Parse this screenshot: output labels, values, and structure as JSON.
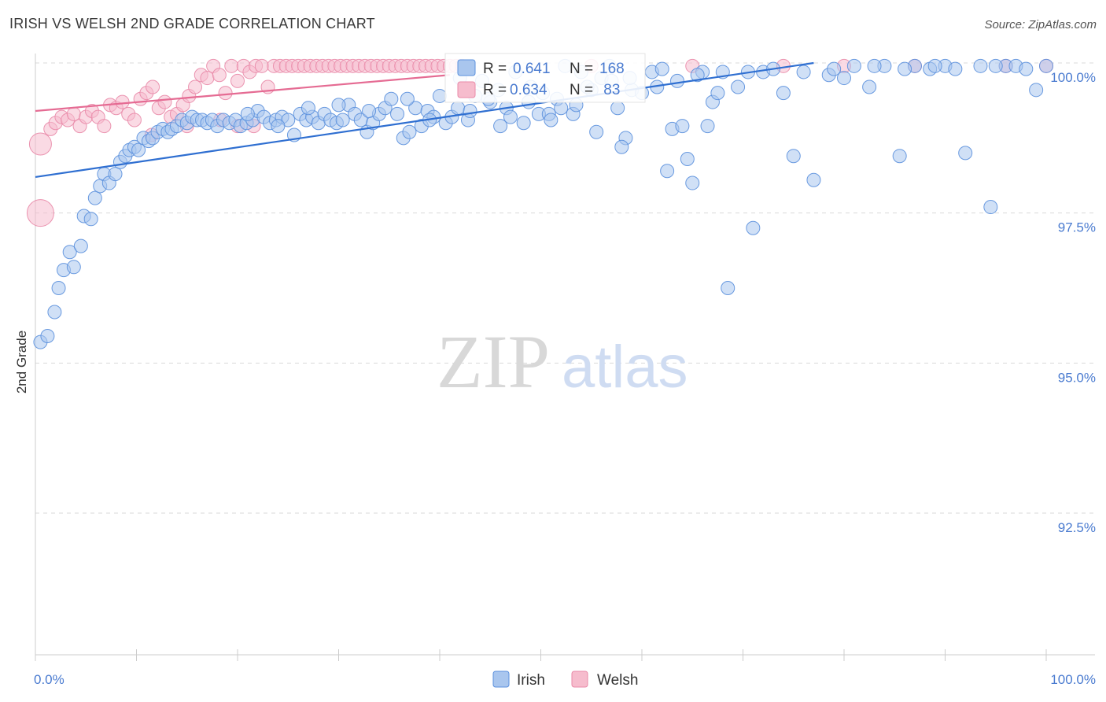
{
  "title": "IRISH VS WELSH 2ND GRADE CORRELATION CHART",
  "source": "Source: ZipAtlas.com",
  "colors": {
    "irish_fill": "#a9c6ee",
    "irish_stroke": "#5b90dd",
    "irish_line": "#2f6fd1",
    "welsh_fill": "#f6bccd",
    "welsh_stroke": "#e98aa8",
    "welsh_line": "#e56b93",
    "tick_label": "#4a7bd0",
    "grid": "#d9d9d9"
  },
  "legend": {
    "irish": {
      "r_label": "R = ",
      "r_value": "0.641",
      "n_label": "N = ",
      "n_value": "168"
    },
    "welsh": {
      "r_label": "R = ",
      "r_value": "0.634",
      "n_label": "N = ",
      "n_value": " 83"
    }
  },
  "watermark": {
    "zip": "ZIP",
    "atlas": "atlas"
  },
  "chart_data": {
    "type": "scatter",
    "title": "IRISH VS WELSH 2ND GRADE CORRELATION CHART",
    "xlabel": "",
    "ylabel": "2nd Grade",
    "xlim": [
      0,
      100
    ],
    "ylim": [
      90.5,
      100.4
    ],
    "x_tick_labels": [
      "0.0%",
      "100.0%"
    ],
    "y_ticks": [
      92.5,
      95.0,
      97.5,
      100.0
    ],
    "y_tick_labels": [
      "92.5%",
      "95.0%",
      "97.5%",
      "100.0%"
    ],
    "legend_labels": [
      "Irish",
      "Welsh"
    ],
    "series": [
      {
        "name": "Irish",
        "trend": {
          "x": [
            0,
            77
          ],
          "y": [
            98.1,
            100.0
          ]
        },
        "points": [
          [
            0.5,
            95.35
          ],
          [
            1.2,
            95.45
          ],
          [
            1.9,
            95.85
          ],
          [
            2.3,
            96.25
          ],
          [
            2.8,
            96.55
          ],
          [
            3.4,
            96.85
          ],
          [
            3.8,
            96.6
          ],
          [
            4.5,
            96.95
          ],
          [
            4.8,
            97.45
          ],
          [
            5.5,
            97.4
          ],
          [
            5.9,
            97.75
          ],
          [
            6.4,
            97.95
          ],
          [
            6.8,
            98.15
          ],
          [
            7.3,
            98.0
          ],
          [
            7.9,
            98.15
          ],
          [
            8.4,
            98.35
          ],
          [
            8.9,
            98.45
          ],
          [
            9.3,
            98.55
          ],
          [
            9.8,
            98.6
          ],
          [
            10.2,
            98.55
          ],
          [
            10.7,
            98.75
          ],
          [
            11.2,
            98.7
          ],
          [
            11.6,
            98.75
          ],
          [
            12.1,
            98.85
          ],
          [
            12.6,
            98.9
          ],
          [
            13.1,
            98.85
          ],
          [
            13.5,
            98.9
          ],
          [
            14.0,
            98.95
          ],
          [
            14.5,
            99.05
          ],
          [
            15.0,
            99.0
          ],
          [
            15.5,
            99.1
          ],
          [
            16.0,
            99.05
          ],
          [
            16.5,
            99.05
          ],
          [
            17.0,
            99.0
          ],
          [
            17.5,
            99.05
          ],
          [
            18.0,
            98.95
          ],
          [
            18.6,
            99.05
          ],
          [
            19.2,
            99.0
          ],
          [
            19.8,
            99.05
          ],
          [
            20.3,
            98.95
          ],
          [
            20.9,
            99.0
          ],
          [
            21.5,
            99.05
          ],
          [
            22.0,
            99.2
          ],
          [
            22.6,
            99.1
          ],
          [
            23.2,
            99.0
          ],
          [
            23.8,
            99.05
          ],
          [
            24.4,
            99.1
          ],
          [
            25.0,
            99.05
          ],
          [
            25.6,
            98.8
          ],
          [
            26.2,
            99.15
          ],
          [
            26.8,
            99.05
          ],
          [
            27.4,
            99.1
          ],
          [
            28.0,
            99.0
          ],
          [
            28.6,
            99.15
          ],
          [
            29.2,
            99.05
          ],
          [
            29.8,
            99.0
          ],
          [
            30.4,
            99.05
          ],
          [
            31.0,
            99.3
          ],
          [
            31.6,
            99.15
          ],
          [
            32.2,
            99.05
          ],
          [
            32.8,
            98.85
          ],
          [
            33.4,
            99.0
          ],
          [
            34.0,
            99.15
          ],
          [
            34.6,
            99.25
          ],
          [
            35.2,
            99.4
          ],
          [
            35.8,
            99.15
          ],
          [
            36.4,
            98.75
          ],
          [
            37.0,
            98.85
          ],
          [
            37.6,
            99.25
          ],
          [
            38.2,
            98.95
          ],
          [
            38.8,
            99.2
          ],
          [
            39.4,
            99.1
          ],
          [
            40.0,
            99.45
          ],
          [
            40.6,
            99.0
          ],
          [
            41.2,
            99.1
          ],
          [
            42.0,
            99.75
          ],
          [
            42.8,
            99.05
          ],
          [
            43.5,
            99.45
          ],
          [
            44.2,
            99.7
          ],
          [
            45.0,
            99.35
          ],
          [
            45.8,
            99.55
          ],
          [
            46.6,
            99.25
          ],
          [
            47.5,
            99.85
          ],
          [
            48.3,
            99.0
          ],
          [
            49.0,
            99.6
          ],
          [
            49.8,
            99.15
          ],
          [
            50.8,
            99.15
          ],
          [
            51.6,
            99.4
          ],
          [
            52.4,
            99.95
          ],
          [
            53.2,
            99.15
          ],
          [
            54.0,
            99.85
          ],
          [
            55.0,
            99.55
          ],
          [
            56.0,
            99.75
          ],
          [
            56.8,
            99.95
          ],
          [
            57.6,
            99.25
          ],
          [
            58.4,
            98.75
          ],
          [
            59.0,
            99.55
          ],
          [
            60.0,
            99.5
          ],
          [
            61.0,
            99.85
          ],
          [
            62.0,
            99.9
          ],
          [
            63.0,
            98.9
          ],
          [
            64.0,
            98.95
          ],
          [
            65.0,
            98.0
          ],
          [
            66.0,
            99.85
          ],
          [
            67.0,
            99.35
          ],
          [
            67.5,
            99.5
          ],
          [
            68.5,
            96.25
          ],
          [
            69.5,
            99.6
          ],
          [
            71.0,
            97.25
          ],
          [
            72.0,
            99.85
          ],
          [
            74.0,
            99.5
          ],
          [
            75.0,
            98.45
          ],
          [
            77.0,
            98.05
          ],
          [
            78.5,
            99.8
          ],
          [
            80.0,
            99.75
          ],
          [
            81.0,
            99.95
          ],
          [
            82.5,
            99.6
          ],
          [
            84.0,
            99.95
          ],
          [
            85.5,
            98.45
          ],
          [
            87.0,
            99.95
          ],
          [
            88.5,
            99.9
          ],
          [
            90.0,
            99.95
          ],
          [
            92.0,
            98.5
          ],
          [
            93.5,
            99.95
          ],
          [
            94.5,
            97.6
          ],
          [
            96.0,
            99.95
          ],
          [
            97.0,
            99.95
          ],
          [
            100.0,
            99.95
          ],
          [
            99.0,
            99.55
          ],
          [
            98.0,
            99.9
          ],
          [
            53.5,
            99.3
          ],
          [
            58.0,
            98.6
          ],
          [
            62.5,
            98.2
          ],
          [
            64.5,
            98.4
          ],
          [
            66.5,
            98.95
          ],
          [
            55.5,
            98.85
          ],
          [
            36.8,
            99.4
          ],
          [
            41.8,
            99.25
          ],
          [
            44.8,
            99.4
          ],
          [
            47.0,
            99.1
          ],
          [
            50.2,
            99.5
          ],
          [
            52.0,
            99.25
          ],
          [
            54.6,
            99.6
          ],
          [
            57.0,
            99.7
          ],
          [
            58.8,
            99.75
          ],
          [
            61.5,
            99.6
          ],
          [
            63.5,
            99.7
          ],
          [
            65.5,
            99.8
          ],
          [
            68.0,
            99.85
          ],
          [
            70.5,
            99.85
          ],
          [
            73.0,
            99.9
          ],
          [
            76.0,
            99.85
          ],
          [
            79.0,
            99.9
          ],
          [
            83.0,
            99.95
          ],
          [
            86.0,
            99.9
          ],
          [
            89.0,
            99.95
          ],
          [
            91.0,
            99.9
          ],
          [
            95.0,
            99.95
          ],
          [
            39.0,
            99.05
          ],
          [
            43.0,
            99.2
          ],
          [
            46.0,
            98.95
          ],
          [
            48.8,
            99.35
          ],
          [
            51.0,
            99.05
          ],
          [
            33.0,
            99.2
          ],
          [
            30.0,
            99.3
          ],
          [
            27.0,
            99.25
          ],
          [
            24.0,
            98.95
          ],
          [
            21.0,
            99.15
          ]
        ]
      },
      {
        "name": "Welsh",
        "trend": {
          "x": [
            0,
            41
          ],
          "y": [
            99.2,
            99.8
          ]
        },
        "points": [
          [
            0.5,
            98.65
          ],
          [
            0.5,
            97.5
          ],
          [
            1.5,
            98.9
          ],
          [
            2.0,
            99.0
          ],
          [
            2.6,
            99.1
          ],
          [
            3.2,
            99.05
          ],
          [
            3.8,
            99.15
          ],
          [
            4.4,
            98.95
          ],
          [
            5.0,
            99.1
          ],
          [
            5.6,
            99.2
          ],
          [
            6.2,
            99.1
          ],
          [
            6.8,
            98.95
          ],
          [
            7.4,
            99.3
          ],
          [
            8.0,
            99.25
          ],
          [
            8.6,
            99.35
          ],
          [
            9.2,
            99.15
          ],
          [
            9.8,
            99.05
          ],
          [
            10.4,
            99.4
          ],
          [
            11.0,
            99.5
          ],
          [
            11.6,
            99.6
          ],
          [
            12.2,
            99.25
          ],
          [
            12.8,
            99.35
          ],
          [
            13.4,
            99.1
          ],
          [
            14.0,
            99.15
          ],
          [
            14.6,
            99.3
          ],
          [
            15.2,
            99.45
          ],
          [
            15.8,
            99.6
          ],
          [
            16.4,
            99.8
          ],
          [
            17.0,
            99.75
          ],
          [
            17.6,
            99.95
          ],
          [
            18.2,
            99.8
          ],
          [
            18.8,
            99.5
          ],
          [
            19.4,
            99.95
          ],
          [
            20.0,
            99.7
          ],
          [
            20.6,
            99.95
          ],
          [
            21.2,
            99.85
          ],
          [
            21.8,
            99.95
          ],
          [
            22.4,
            99.95
          ],
          [
            23.0,
            99.6
          ],
          [
            23.6,
            99.95
          ],
          [
            24.2,
            99.95
          ],
          [
            24.8,
            99.95
          ],
          [
            25.4,
            99.95
          ],
          [
            26.0,
            99.95
          ],
          [
            26.6,
            99.95
          ],
          [
            27.2,
            99.95
          ],
          [
            27.8,
            99.95
          ],
          [
            28.4,
            99.95
          ],
          [
            29.0,
            99.95
          ],
          [
            29.6,
            99.95
          ],
          [
            30.2,
            99.95
          ],
          [
            30.8,
            99.95
          ],
          [
            31.4,
            99.95
          ],
          [
            32.0,
            99.95
          ],
          [
            32.6,
            99.95
          ],
          [
            33.2,
            99.95
          ],
          [
            33.8,
            99.95
          ],
          [
            34.4,
            99.95
          ],
          [
            35.0,
            99.95
          ],
          [
            35.6,
            99.95
          ],
          [
            36.2,
            99.95
          ],
          [
            36.8,
            99.95
          ],
          [
            37.4,
            99.95
          ],
          [
            38.0,
            99.95
          ],
          [
            38.6,
            99.95
          ],
          [
            39.2,
            99.95
          ],
          [
            39.8,
            99.95
          ],
          [
            40.4,
            99.95
          ],
          [
            41.0,
            99.95
          ],
          [
            41.6,
            99.95
          ],
          [
            42.2,
            99.95
          ],
          [
            55.0,
            99.95
          ],
          [
            65.0,
            99.95
          ],
          [
            74.0,
            99.95
          ],
          [
            80.0,
            99.95
          ],
          [
            87.0,
            99.95
          ],
          [
            96.0,
            99.95
          ],
          [
            100.0,
            99.95
          ],
          [
            20.0,
            98.95
          ],
          [
            11.5,
            98.8
          ],
          [
            15.0,
            98.95
          ],
          [
            18.3,
            99.05
          ],
          [
            21.6,
            98.95
          ]
        ]
      }
    ]
  }
}
